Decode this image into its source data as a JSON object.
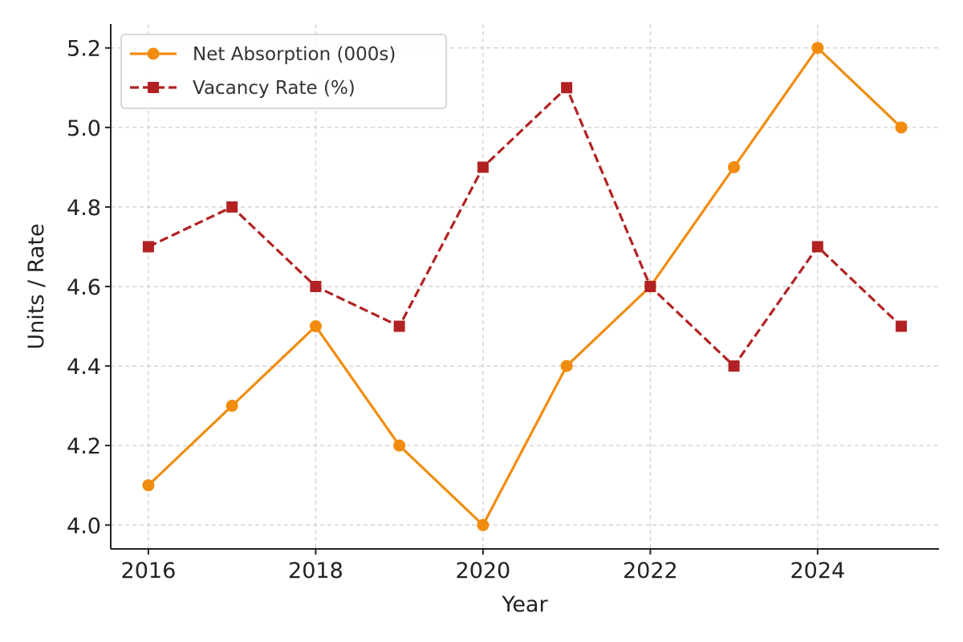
{
  "chart_data": {
    "type": "line",
    "title": "",
    "xlabel": "Year",
    "ylabel": "Units / Rate",
    "x": [
      2016,
      2017,
      2018,
      2019,
      2020,
      2021,
      2022,
      2023,
      2024,
      2025
    ],
    "xticks": [
      "2016",
      "2018",
      "2020",
      "2022",
      "2024"
    ],
    "yticks": [
      "4.0",
      "4.2",
      "4.4",
      "4.6",
      "4.8",
      "5.0",
      "5.2"
    ],
    "xlim": [
      2015.55,
      2025.45
    ],
    "ylim": [
      3.94,
      5.26
    ],
    "grid": true,
    "legend_position": "top-left",
    "series": [
      {
        "name": "Net Absorption (000s)",
        "color": "#f28c0f",
        "line_style": "solid",
        "marker": "circle",
        "values": [
          4.1,
          4.3,
          4.5,
          4.2,
          4.0,
          4.4,
          4.6,
          4.9,
          5.2,
          5.0
        ]
      },
      {
        "name": "Vacancy Rate (%)",
        "color": "#b22222",
        "line_style": "dashed",
        "marker": "square",
        "values": [
          4.7,
          4.8,
          4.6,
          4.5,
          4.9,
          5.1,
          4.6,
          4.4,
          4.7,
          4.5
        ]
      }
    ]
  }
}
